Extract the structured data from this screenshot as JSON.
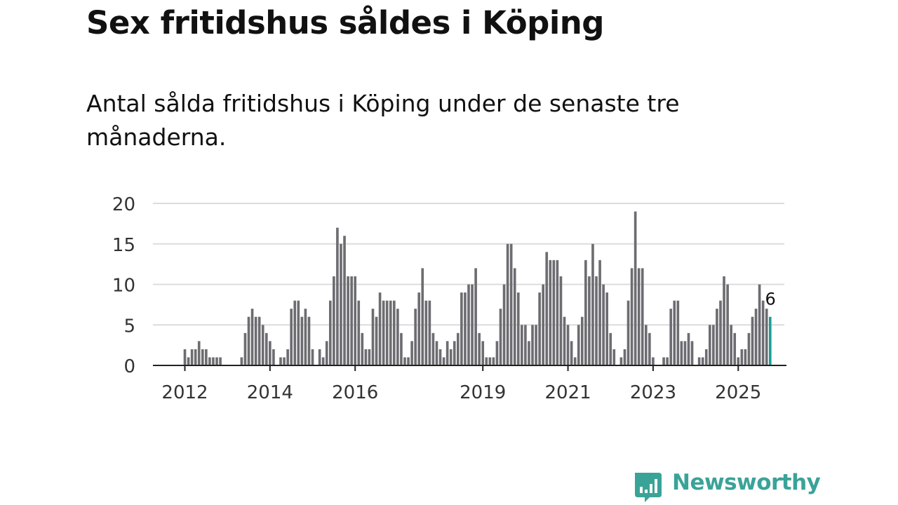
{
  "header": {
    "title": "Sex fritidshus såldes i Köping",
    "subtitle": "Antal sålda fritidshus i Köping under de senaste tre månaderna."
  },
  "brand": {
    "name": "Newsworthy",
    "color": "#3aa398",
    "icon": "bar-chart-speech-bubble-icon"
  },
  "chart_data": {
    "type": "bar",
    "title": "Sex fritidshus såldes i Köping",
    "xlabel": "",
    "ylabel": "",
    "ylim": [
      0,
      20
    ],
    "yticks": [
      0,
      5,
      10,
      15,
      20
    ],
    "xlim": [
      "2011-04",
      "2026-02"
    ],
    "xticks": [
      {
        "label": "2012",
        "at": "2012-01"
      },
      {
        "label": "2014",
        "at": "2014-01"
      },
      {
        "label": "2016",
        "at": "2016-01"
      },
      {
        "label": "2019",
        "at": "2019-01"
      },
      {
        "label": "2021",
        "at": "2021-01"
      },
      {
        "label": "2023",
        "at": "2023-01"
      },
      {
        "label": "2025",
        "at": "2025-01"
      }
    ],
    "grid": true,
    "bar_color": "#6d6c71",
    "highlight_color": "#1a9e92",
    "highlight_label": "6",
    "start_month": "2012-01",
    "values": [
      2,
      1,
      2,
      2,
      3,
      2,
      2,
      1,
      1,
      1,
      1,
      0,
      0,
      0,
      0,
      0,
      1,
      4,
      6,
      7,
      6,
      6,
      5,
      4,
      3,
      2,
      0,
      1,
      1,
      2,
      7,
      8,
      8,
      6,
      7,
      6,
      2,
      0,
      2,
      1,
      3,
      8,
      11,
      17,
      15,
      16,
      11,
      11,
      11,
      8,
      4,
      2,
      2,
      7,
      6,
      9,
      8,
      8,
      8,
      8,
      7,
      4,
      1,
      1,
      3,
      7,
      9,
      12,
      8,
      8,
      4,
      3,
      2,
      1,
      3,
      2,
      3,
      4,
      9,
      9,
      10,
      10,
      12,
      4,
      3,
      1,
      1,
      1,
      3,
      7,
      10,
      15,
      15,
      12,
      9,
      5,
      5,
      3,
      5,
      5,
      9,
      10,
      14,
      13,
      13,
      13,
      11,
      6,
      5,
      3,
      1,
      5,
      6,
      13,
      11,
      15,
      11,
      13,
      10,
      9,
      4,
      2,
      0,
      1,
      2,
      8,
      12,
      19,
      12,
      12,
      5,
      4,
      1,
      0,
      0,
      1,
      1,
      7,
      8,
      8,
      3,
      3,
      4,
      3,
      0,
      1,
      1,
      2,
      5,
      5,
      7,
      8,
      11,
      10,
      5,
      4,
      1,
      2,
      2,
      4,
      6,
      7,
      10,
      8,
      7,
      6
    ]
  }
}
